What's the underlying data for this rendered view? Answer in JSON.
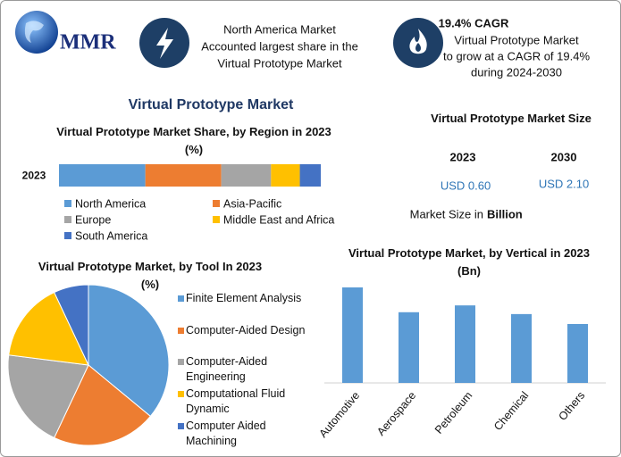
{
  "header": {
    "logo": "MMR",
    "highlight_1": [
      "North America Market",
      "Accounted largest share in the",
      "Virtual Prototype Market"
    ],
    "highlight_2_title": "19.4% CAGR",
    "highlight_2": [
      "Virtual Prototype Market",
      "to grow at a CAGR of 19.4%",
      "during 2024-2030"
    ]
  },
  "title": "Virtual Prototype Market",
  "size_panel": {
    "title": "Virtual Prototype Market Size",
    "years": [
      "2023",
      "2030"
    ],
    "values": [
      "USD 0.60",
      "USD 2.10"
    ],
    "note": "Market Size in",
    "note_unit": "Billion"
  },
  "chart_data": [
    {
      "type": "stacked-bar",
      "orientation": "horizontal",
      "title": "Virtual Prototype Market Share, by Region in 2023 (%)",
      "categories": [
        "2023"
      ],
      "series": [
        {
          "name": "North America",
          "color": "#5b9bd5",
          "values": [
            33
          ]
        },
        {
          "name": "Asia-Pacific",
          "color": "#ed7d31",
          "values": [
            29
          ]
        },
        {
          "name": "Europe",
          "color": "#a5a5a5",
          "values": [
            19
          ]
        },
        {
          "name": "Middle East and Africa",
          "color": "#ffc000",
          "values": [
            11
          ]
        },
        {
          "name": "South America",
          "color": "#4472c4",
          "values": [
            8
          ]
        }
      ]
    },
    {
      "type": "pie",
      "title": "Virtual Prototype Market, by Tool In 2023 (%)",
      "categories": [
        "Finite Element Analysis",
        "Computer-Aided Design",
        "Computer-Aided Engineering",
        "Computational Fluid Dynamic",
        "Computer Aided Machining"
      ],
      "values": [
        36,
        21,
        20,
        16,
        7
      ],
      "colors": [
        "#5b9bd5",
        "#ed7d31",
        "#a5a5a5",
        "#ffc000",
        "#4472c4"
      ]
    },
    {
      "type": "bar",
      "title": "Virtual Prototype Market, by Vertical in 2023 (Bn)",
      "categories": [
        "Automotive",
        "Aerospace",
        "Petroleum",
        "Chemical",
        "Others"
      ],
      "values": [
        0.154,
        0.114,
        0.125,
        0.111,
        0.095
      ],
      "color": "#5b9bd5"
    }
  ]
}
